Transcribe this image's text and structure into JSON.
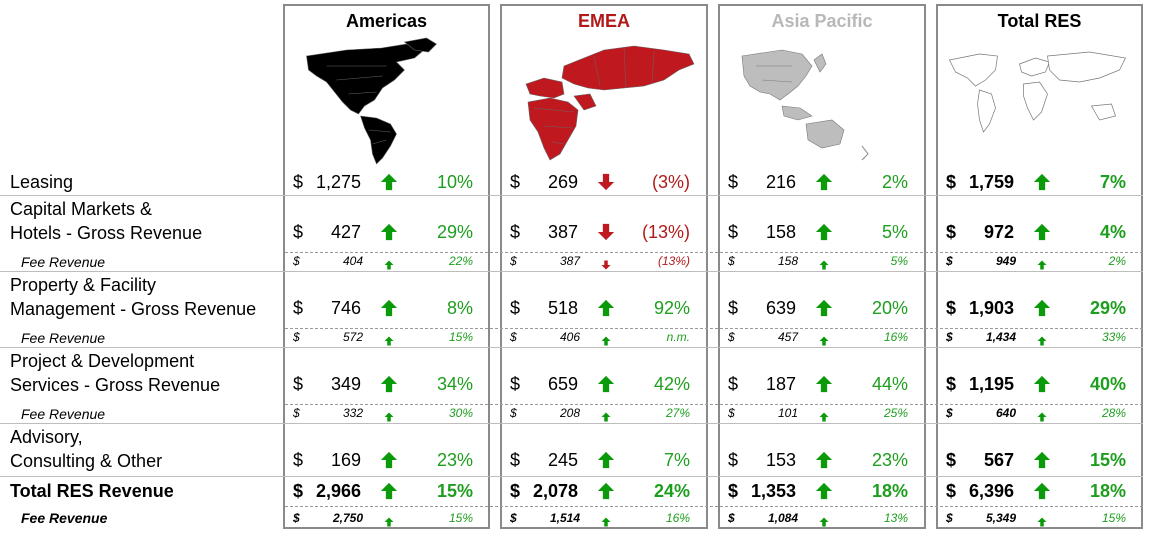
{
  "colors": {
    "americas": "#000000",
    "emea": "#c0181f",
    "asia": "#b8b8b8",
    "total": "#ffffff",
    "up": "#0a9a0a",
    "down": "#c0181f"
  },
  "regions": [
    {
      "key": "americas",
      "title": "Americas",
      "title_color": "#000000"
    },
    {
      "key": "emea",
      "title": "EMEA",
      "title_color": "#b01a1a"
    },
    {
      "key": "asia",
      "title": "Asia Pacific",
      "title_color": "#b8b8b8"
    },
    {
      "key": "total",
      "title": "Total RES",
      "title_color": "#000000"
    }
  ],
  "rows": [
    {
      "label": [
        "Leasing"
      ],
      "type": "main",
      "cells": [
        [
          "$",
          "1,275",
          "up",
          "10%"
        ],
        [
          "$",
          "269",
          "down",
          "(3%)"
        ],
        [
          "$",
          "216",
          "up",
          "2%"
        ],
        [
          "$",
          "1,759",
          "up",
          "7%"
        ]
      ]
    },
    {
      "label": [
        "Capital Markets &",
        "Hotels - Gross Revenue"
      ],
      "type": "main",
      "cells": [
        [
          "$",
          "427",
          "up",
          "29%"
        ],
        [
          "$",
          "387",
          "down",
          "(13%)"
        ],
        [
          "$",
          "158",
          "up",
          "5%"
        ],
        [
          "$",
          "972",
          "up",
          "4%"
        ]
      ]
    },
    {
      "label": [
        "Fee Revenue"
      ],
      "type": "fee",
      "cells": [
        [
          "$",
          "404",
          "up",
          "22%"
        ],
        [
          "$",
          "387",
          "down",
          "(13%)"
        ],
        [
          "$",
          "158",
          "up",
          "5%"
        ],
        [
          "$",
          "949",
          "up",
          "2%"
        ]
      ]
    },
    {
      "label": [
        "Property & Facility",
        "Management - Gross Revenue"
      ],
      "type": "main",
      "cells": [
        [
          "$",
          "746",
          "up",
          "8%"
        ],
        [
          "$",
          "518",
          "up",
          "92%"
        ],
        [
          "$",
          "639",
          "up",
          "20%"
        ],
        [
          "$",
          "1,903",
          "up",
          "29%"
        ]
      ]
    },
    {
      "label": [
        "Fee Revenue"
      ],
      "type": "fee",
      "cells": [
        [
          "$",
          "572",
          "up",
          "15%"
        ],
        [
          "$",
          "406",
          "up",
          "n.m."
        ],
        [
          "$",
          "457",
          "up",
          "16%"
        ],
        [
          "$",
          "1,434",
          "up",
          "33%"
        ]
      ]
    },
    {
      "label": [
        "Project & Development",
        "Services - Gross Revenue"
      ],
      "type": "main",
      "cells": [
        [
          "$",
          "349",
          "up",
          "34%"
        ],
        [
          "$",
          "659",
          "up",
          "42%"
        ],
        [
          "$",
          "187",
          "up",
          "44%"
        ],
        [
          "$",
          "1,195",
          "up",
          "40%"
        ]
      ]
    },
    {
      "label": [
        "Fee Revenue"
      ],
      "type": "fee",
      "cells": [
        [
          "$",
          "332",
          "up",
          "30%"
        ],
        [
          "$",
          "208",
          "up",
          "27%"
        ],
        [
          "$",
          "101",
          "up",
          "25%"
        ],
        [
          "$",
          "640",
          "up",
          "28%"
        ]
      ]
    },
    {
      "label": [
        "Advisory,",
        "Consulting & Other"
      ],
      "type": "main",
      "cells": [
        [
          "$",
          "169",
          "up",
          "23%"
        ],
        [
          "$",
          "245",
          "up",
          "7%"
        ],
        [
          "$",
          "153",
          "up",
          "23%"
        ],
        [
          "$",
          "567",
          "up",
          "15%"
        ]
      ]
    },
    {
      "label": [
        "Total RES Revenue"
      ],
      "type": "total",
      "cells": [
        [
          "$",
          "2,966",
          "up",
          "15%"
        ],
        [
          "$",
          "2,078",
          "up",
          "24%"
        ],
        [
          "$",
          "1,353",
          "up",
          "18%"
        ],
        [
          "$",
          "6,396",
          "up",
          "18%"
        ]
      ]
    },
    {
      "label": [
        "Fee Revenue"
      ],
      "type": "totalfee",
      "cells": [
        [
          "$",
          "2,750",
          "up",
          "15%"
        ],
        [
          "$",
          "1,514",
          "up",
          "16%"
        ],
        [
          "$",
          "1,084",
          "up",
          "13%"
        ],
        [
          "$",
          "5,349",
          "up",
          "15%"
        ]
      ]
    }
  ]
}
